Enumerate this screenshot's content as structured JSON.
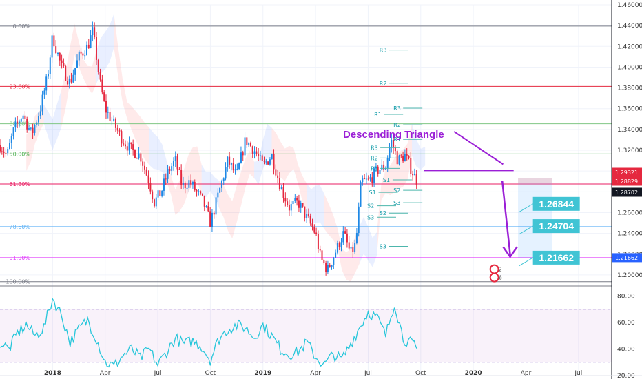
{
  "chart_data": [
    {
      "type": "candlestick",
      "panel": "price",
      "ylim": [
        1.19,
        1.46
      ],
      "x_ticks": [
        "2018",
        "Apr",
        "Jul",
        "Oct",
        "2019",
        "Apr",
        "Jul",
        "Oct",
        "2020",
        "Apr",
        "Jul"
      ],
      "y_ticks": [
        "1.46000",
        "1.44000",
        "1.42000",
        "1.40000",
        "1.38000",
        "1.36000",
        "1.34000",
        "1.32000",
        "1.30000",
        "1.28000",
        "1.26000",
        "1.24000",
        "1.22000",
        "1.20000"
      ],
      "price_path": [
        {
          "x": 0.0,
          "y": 1.325
        },
        {
          "x": 0.4,
          "y": 1.315
        },
        {
          "x": 0.8,
          "y": 1.34
        },
        {
          "x": 1.3,
          "y": 1.355
        },
        {
          "x": 1.8,
          "y": 1.335
        },
        {
          "x": 2.3,
          "y": 1.36
        },
        {
          "x": 2.7,
          "y": 1.39
        },
        {
          "x": 3.0,
          "y": 1.43
        },
        {
          "x": 3.5,
          "y": 1.4
        },
        {
          "x": 4.0,
          "y": 1.385
        },
        {
          "x": 4.5,
          "y": 1.41
        },
        {
          "x": 5.0,
          "y": 1.42
        },
        {
          "x": 5.3,
          "y": 1.435
        },
        {
          "x": 5.7,
          "y": 1.385
        },
        {
          "x": 6.0,
          "y": 1.36
        },
        {
          "x": 6.5,
          "y": 1.345
        },
        {
          "x": 7.0,
          "y": 1.33
        },
        {
          "x": 7.5,
          "y": 1.32
        },
        {
          "x": 8.0,
          "y": 1.315
        },
        {
          "x": 8.5,
          "y": 1.29
        },
        {
          "x": 8.8,
          "y": 1.27
        },
        {
          "x": 9.2,
          "y": 1.28
        },
        {
          "x": 9.6,
          "y": 1.3
        },
        {
          "x": 10.0,
          "y": 1.31
        },
        {
          "x": 10.4,
          "y": 1.285
        },
        {
          "x": 10.8,
          "y": 1.29
        },
        {
          "x": 11.2,
          "y": 1.28
        },
        {
          "x": 11.6,
          "y": 1.27
        },
        {
          "x": 12.0,
          "y": 1.25
        },
        {
          "x": 12.5,
          "y": 1.28
        },
        {
          "x": 13.0,
          "y": 1.31
        },
        {
          "x": 13.5,
          "y": 1.295
        },
        {
          "x": 14.0,
          "y": 1.33
        },
        {
          "x": 14.5,
          "y": 1.32
        },
        {
          "x": 15.0,
          "y": 1.305
        },
        {
          "x": 15.5,
          "y": 1.315
        },
        {
          "x": 16.0,
          "y": 1.285
        },
        {
          "x": 16.5,
          "y": 1.265
        },
        {
          "x": 17.0,
          "y": 1.27
        },
        {
          "x": 17.5,
          "y": 1.255
        },
        {
          "x": 18.0,
          "y": 1.24
        },
        {
          "x": 18.3,
          "y": 1.215
        },
        {
          "x": 18.7,
          "y": 1.205
        },
        {
          "x": 19.2,
          "y": 1.225
        },
        {
          "x": 19.6,
          "y": 1.24
        },
        {
          "x": 20.0,
          "y": 1.22
        },
        {
          "x": 20.3,
          "y": 1.23
        },
        {
          "x": 20.6,
          "y": 1.29
        },
        {
          "x": 21.0,
          "y": 1.29
        },
        {
          "x": 21.5,
          "y": 1.3
        },
        {
          "x": 22.0,
          "y": 1.305
        },
        {
          "x": 22.3,
          "y": 1.33
        },
        {
          "x": 22.7,
          "y": 1.31
        },
        {
          "x": 23.1,
          "y": 1.315
        },
        {
          "x": 23.5,
          "y": 1.3
        },
        {
          "x": 23.8,
          "y": 1.29
        }
      ]
    },
    {
      "type": "line",
      "panel": "rsi",
      "ylim": [
        20,
        85
      ],
      "y_ticks": [
        "80.00",
        "60.00",
        "40.00",
        "20.00"
      ],
      "bands": [
        70,
        30
      ],
      "x": [
        0,
        0.5,
        1,
        1.5,
        2,
        2.5,
        3,
        3.5,
        4,
        4.5,
        5,
        5.5,
        6,
        6.5,
        7,
        7.5,
        8,
        8.5,
        9,
        9.5,
        10,
        10.5,
        11,
        11.5,
        12,
        12.5,
        13,
        13.5,
        14,
        14.5,
        15,
        15.5,
        16,
        16.5,
        17,
        17.5,
        18,
        18.5,
        19,
        19.5,
        20,
        20.5,
        21,
        21.5,
        22,
        22.5,
        23,
        23.5,
        23.8
      ],
      "values": [
        45,
        40,
        52,
        58,
        50,
        56,
        78,
        66,
        45,
        55,
        62,
        48,
        30,
        27,
        35,
        40,
        33,
        40,
        28,
        38,
        48,
        44,
        46,
        42,
        32,
        48,
        55,
        58,
        56,
        49,
        58,
        50,
        40,
        36,
        38,
        45,
        34,
        28,
        36,
        32,
        44,
        56,
        68,
        64,
        50,
        75,
        48,
        44,
        40
      ]
    }
  ],
  "fib_levels": [
    {
      "label": "0.00%",
      "price": 1.4395,
      "color": "#787b86"
    },
    {
      "label": "23.60%",
      "price": 1.3815,
      "color": "#e5283f"
    },
    {
      "label": "38.20%",
      "price": 1.3455,
      "color": "#81c784"
    },
    {
      "label": "50.00%",
      "price": 1.3165,
      "color": "#4caf50"
    },
    {
      "label": "61.80%",
      "price": 1.2875,
      "color": "#e91e63"
    },
    {
      "label": "78.60%",
      "price": 1.2465,
      "color": "#64b5f6"
    },
    {
      "label": "91.00%",
      "price": 1.2166,
      "color": "#e040fb"
    },
    {
      "label": "100.00%",
      "price": 1.1935,
      "color": "#787b86"
    }
  ],
  "pivots": [
    {
      "label": "R3",
      "x": 21.8,
      "price": 1.4165
    },
    {
      "label": "R2",
      "x": 21.8,
      "price": 1.3845
    },
    {
      "label": "R1",
      "x": 21.5,
      "price": 1.3545
    },
    {
      "label": "R3",
      "x": 22.6,
      "price": 1.3605
    },
    {
      "label": "R2",
      "x": 22.6,
      "price": 1.3445
    },
    {
      "label": "R1",
      "x": 22.6,
      "price": 1.3305
    },
    {
      "label": "R3",
      "x": 21.3,
      "price": 1.3225
    },
    {
      "label": "R2",
      "x": 21.3,
      "price": 1.3125
    },
    {
      "label": "R1",
      "x": 21.3,
      "price": 1.3025
    },
    {
      "label": "S1",
      "x": 21.2,
      "price": 1.2795
    },
    {
      "label": "S2",
      "x": 21.1,
      "price": 1.2665
    },
    {
      "label": "S3",
      "x": 21.1,
      "price": 1.2555
    },
    {
      "label": "S1",
      "x": 22.0,
      "price": 1.2915
    },
    {
      "label": "S2",
      "x": 21.8,
      "price": 1.2595
    },
    {
      "label": "S3",
      "x": 21.8,
      "price": 1.2275
    },
    {
      "label": "S2",
      "x": 22.6,
      "price": 1.2815
    },
    {
      "label": "S3",
      "x": 22.6,
      "price": 1.2695
    }
  ],
  "annotation": {
    "text": "Descending Triangle",
    "color": "#9b1fd6"
  },
  "targets": [
    {
      "text": "1.26844",
      "price": 1.2684
    },
    {
      "text": "1.24704",
      "price": 1.247
    },
    {
      "text": "1.21662",
      "price": 1.2166
    }
  ],
  "price_labels": [
    {
      "text": "1.29321",
      "price": 1.2932,
      "color": "#e5283f"
    },
    {
      "text": "1.28829",
      "price": 1.2883,
      "color": "#e5283f"
    },
    {
      "text": "1.28702",
      "price": 1.287,
      "color": "#131722"
    },
    {
      "text": "1.21662",
      "price": 1.2166,
      "color": "#2962ff"
    }
  ],
  "event_badges": [
    "2",
    "6"
  ],
  "colors": {
    "up": "#1e88e5",
    "down": "#e5283f",
    "rsi": "#26c6da",
    "target_box": "#40c4d4",
    "triangle": "#9b1fd6"
  }
}
